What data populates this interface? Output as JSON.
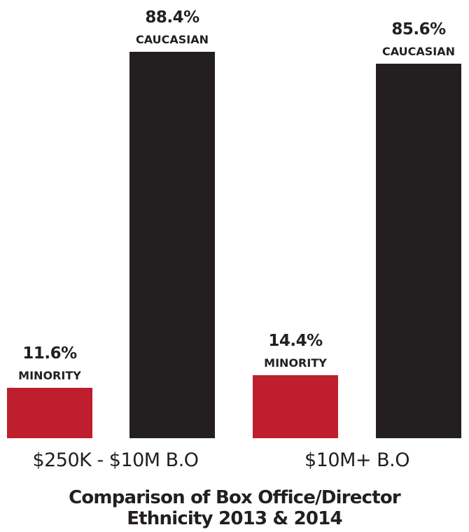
{
  "chart_data": {
    "type": "bar",
    "title_lines": [
      "Comparison of Box Office/Director",
      "Ethnicity 2013 & 2014"
    ],
    "categories": [
      "$250K - $10M B.O",
      "$10M+ B.O"
    ],
    "series": [
      {
        "name": "MINORITY",
        "values": [
          11.6,
          14.4
        ],
        "labels": [
          "11.6%",
          "14.4%"
        ],
        "color": "#be1e2d"
      },
      {
        "name": "CAUCASIAN",
        "values": [
          88.4,
          85.6
        ],
        "labels": [
          "88.4%",
          "85.6%"
        ],
        "color": "#231f20"
      }
    ],
    "ylim": [
      0,
      100
    ],
    "grid": false,
    "legend": "none"
  }
}
